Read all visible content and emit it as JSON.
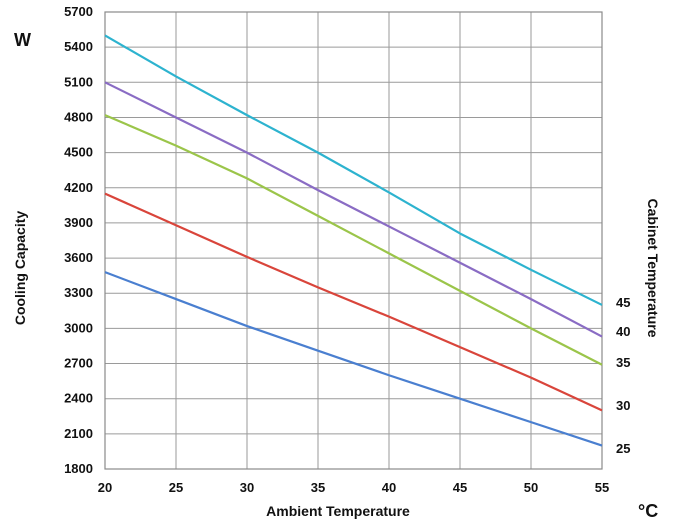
{
  "chart_data": {
    "type": "line",
    "title": "",
    "xlabel": "Ambient Temperature",
    "ylabel": "Cooling Capacity",
    "y_unit": "W",
    "x_unit": "°C",
    "series_axis_label": "Cabinet Temperature",
    "xlim": [
      20,
      55
    ],
    "ylim": [
      1800,
      5700
    ],
    "x_ticks": [
      20,
      25,
      30,
      35,
      40,
      45,
      50,
      55
    ],
    "y_ticks": [
      1800,
      2100,
      2400,
      2700,
      3000,
      3300,
      3600,
      3900,
      4200,
      4500,
      4800,
      5100,
      5400,
      5700
    ],
    "grid": true,
    "x": [
      20,
      25,
      30,
      35,
      40,
      45,
      50,
      55
    ],
    "series": [
      {
        "name": "25",
        "color": "#4a7fd0",
        "values": [
          3480,
          3250,
          3020,
          2810,
          2600,
          2400,
          2200,
          2000
        ]
      },
      {
        "name": "30",
        "color": "#d9453b",
        "values": [
          4150,
          3880,
          3610,
          3350,
          3100,
          2840,
          2580,
          2300
        ]
      },
      {
        "name": "35",
        "color": "#9bc54a",
        "values": [
          4820,
          4560,
          4280,
          3960,
          3640,
          3320,
          3000,
          2690
        ]
      },
      {
        "name": "40",
        "color": "#8a6cc4",
        "values": [
          5100,
          4800,
          4500,
          4180,
          3870,
          3560,
          3250,
          2930
        ]
      },
      {
        "name": "45",
        "color": "#2db3cf",
        "values": [
          5500,
          5150,
          4820,
          4500,
          4160,
          3810,
          3500,
          3200
        ]
      }
    ]
  }
}
